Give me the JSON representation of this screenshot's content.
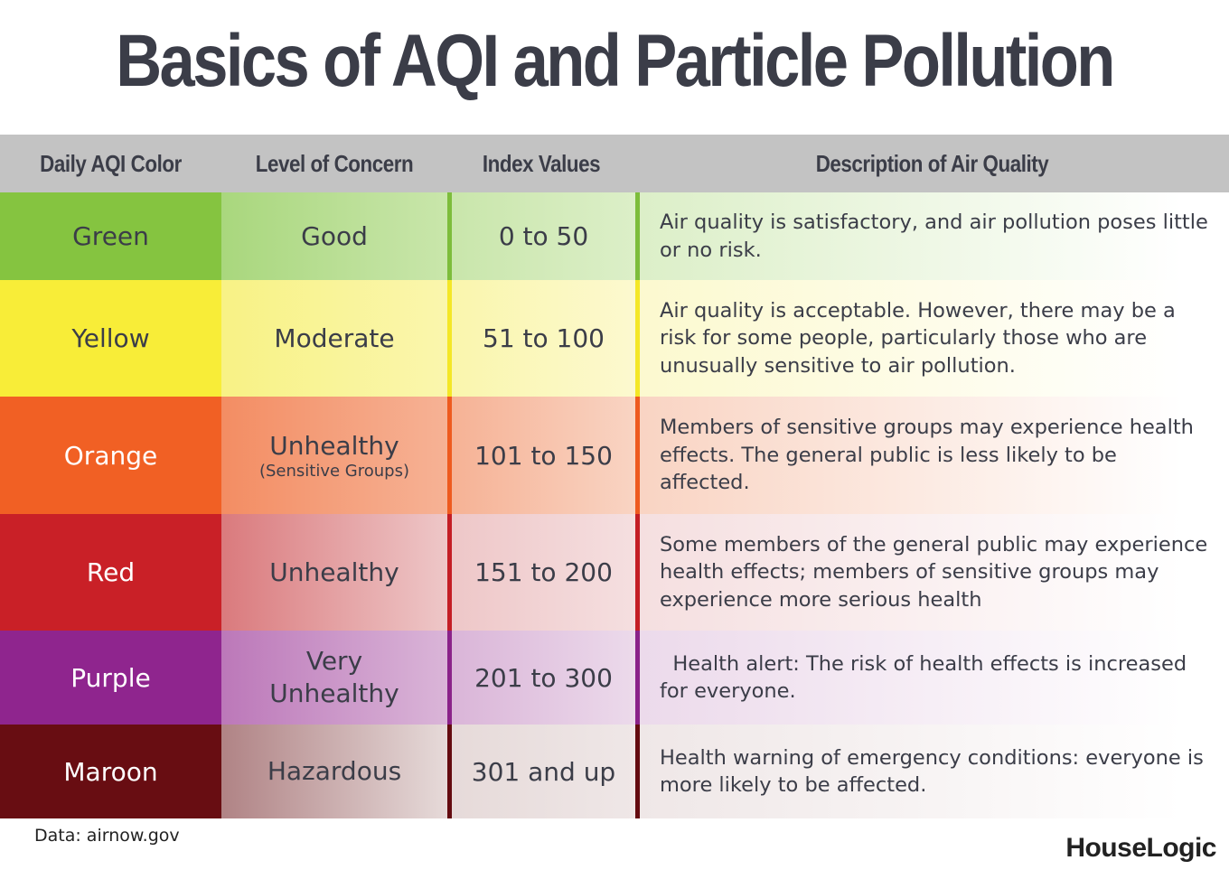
{
  "title": "Basics of AQI and Particle Pollution",
  "headers": [
    "Daily AQI Color",
    "Level of Concern",
    "Index Values",
    "Description of Air Quality"
  ],
  "rows": [
    {
      "color_name": "Green",
      "level": "Good",
      "level_sub": "",
      "index": "0 to 50",
      "description": "Air quality is satisfactory, and air pollution poses little or no risk.",
      "color": "#85c440",
      "level_bg": "#a9d77d",
      "index_bg": "#c9e6ab",
      "sep": "#7dbd3b",
      "desc_bg": "#dcefc8",
      "text_color": "#3b3d48",
      "height": 97
    },
    {
      "color_name": "Yellow",
      "level": "Moderate",
      "level_sub": "",
      "index": "51 to 100",
      "description": "Air quality is acceptable. However, there may be a risk for some people, particularly those who are unusually sensitive to air pollution.",
      "color": "#f8ed38",
      "level_bg": "#f8f285",
      "index_bg": "#faf6ad",
      "sep": "#f4e726",
      "desc_bg": "#fcf9cf",
      "text_color": "#3b3d48",
      "height": 129
    },
    {
      "color_name": "Orange",
      "level": "Unhealthy",
      "level_sub": "(Sensitive Groups)",
      "index": "101 to 150",
      "description": "Members of sensitive groups may experience health effects. The general public is less likely to be affected.",
      "color": "#f16024",
      "level_bg": "#f38d63",
      "index_bg": "#f6b295",
      "sep": "#ee5a1f",
      "desc_bg": "#f9d4c3",
      "text_color": "#ffffff",
      "height": 130
    },
    {
      "color_name": "Red",
      "level": "Unhealthy",
      "level_sub": "",
      "index": "151 to 200",
      "description": "Some members of the general public may experience health effects; members of sensitive groups may experience more serious health",
      "color": "#c92027",
      "level_bg": "#da7a7d",
      "index_bg": "#eec7c8",
      "sep": "#c41e25",
      "desc_bg": "#f5dfe0",
      "text_color": "#ffffff",
      "height": 129
    },
    {
      "color_name": "Purple",
      "level": "Very Unhealthy",
      "level_sub": "",
      "index": "201 to 300",
      "description": "  Health alert: The risk of health effects is increased for everyone.",
      "color": "#8f258e",
      "level_bg": "#bc78b9",
      "index_bg": "#dab5d8",
      "sep": "#8a2289",
      "desc_bg": "#ecdaeb",
      "text_color": "#ffffff",
      "height": 104
    },
    {
      "color_name": "Maroon",
      "level": "Hazardous",
      "level_sub": "",
      "index": "301 and up",
      "description": "Health warning of emergency conditions: everyone is more likely to be affected.",
      "color": "#680d12",
      "level_bg": "#b08385",
      "index_bg": "#e6dad9",
      "sep": "#640b10",
      "desc_bg": "#efe7e7",
      "text_color": "#ffffff",
      "height": 104
    }
  ],
  "source": "Data: airnow.gov",
  "logo": "HouseLogic"
}
